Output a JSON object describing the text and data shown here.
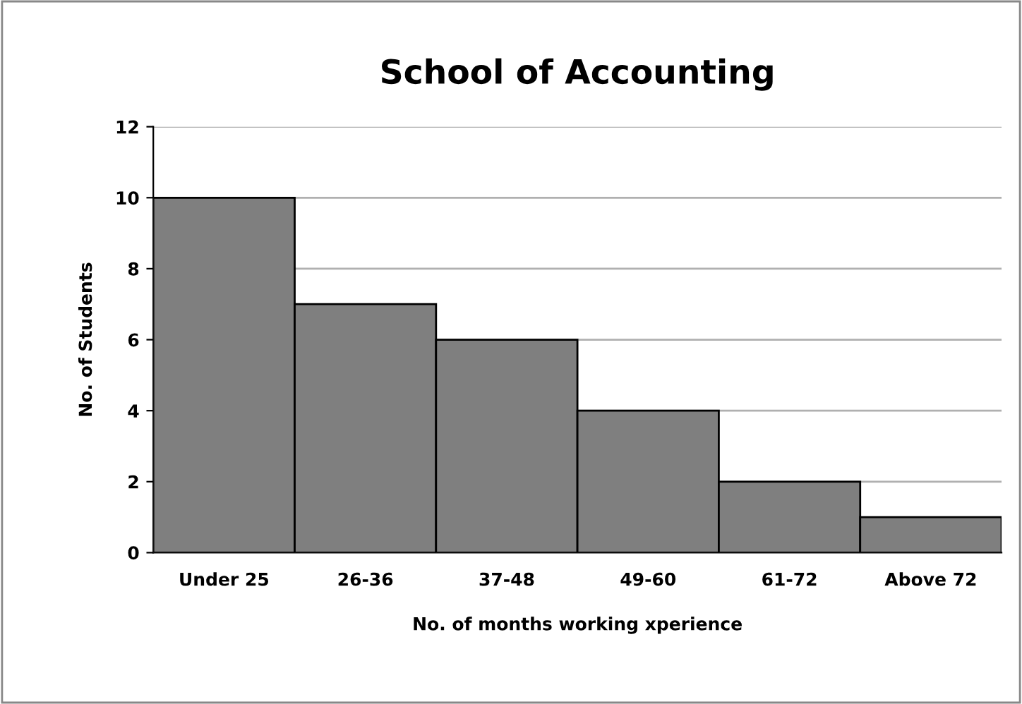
{
  "chart_data": {
    "type": "bar",
    "title": "School of Accounting",
    "categories": [
      "Under 25",
      "26-36",
      "37-48",
      "49-60",
      "61-72",
      "Above 72"
    ],
    "values": [
      10,
      7,
      6,
      4,
      2,
      1
    ],
    "color": "#7f7f7f",
    "xlabel": "No. of months working xperience",
    "ylabel": "No. of Students",
    "ylim": [
      0,
      12
    ],
    "yticks": [
      0,
      2,
      4,
      6,
      8,
      10,
      12
    ],
    "grid": "y"
  }
}
